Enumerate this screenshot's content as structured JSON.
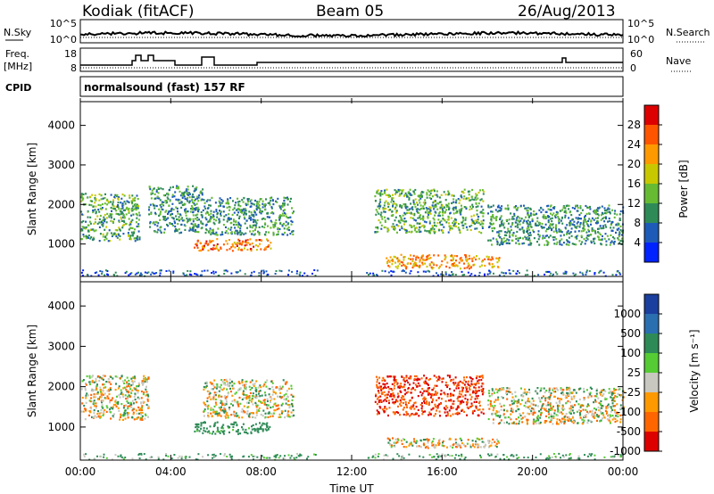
{
  "header": {
    "station": "Kodiak (fitACF)",
    "beam": "Beam 05",
    "date": "26/Aug/2013",
    "cpid_label": "CPID",
    "cpid_text": "normalsound (fast) 157 RF"
  },
  "strip_noise": {
    "left_label": "N.Sky",
    "right_label": "N.Search",
    "left_ticks": [
      "10^5",
      "10^0"
    ],
    "right_ticks": [
      "10^5",
      "10^0"
    ]
  },
  "strip_freq": {
    "left_label_1": "Freq.",
    "left_label_2": "[MHz]",
    "right_label": "Nave",
    "left_ticks": [
      "18",
      "8"
    ],
    "right_ticks": [
      "60",
      "0"
    ]
  },
  "x_axis": {
    "label": "Time UT",
    "ticks": [
      "00:00",
      "04:00",
      "08:00",
      "12:00",
      "16:00",
      "20:00",
      "00:00"
    ]
  },
  "chart_data": [
    {
      "type": "heatmap",
      "name": "power",
      "ylabel": "Slant Range [km]",
      "y_ticks": [
        "1000",
        "2000",
        "3000",
        "4000"
      ],
      "ylim": [
        180,
        4600
      ],
      "xlim_hours": [
        0,
        24
      ],
      "colorbar": {
        "label": "Power [dB]",
        "ticks": [
          "4",
          "8",
          "12",
          "16",
          "20",
          "24",
          "28"
        ],
        "range": [
          0,
          32
        ],
        "colors": [
          "#0022ff",
          "#1e5bb8",
          "#2e8b57",
          "#66bb33",
          "#c8c800",
          "#ff9900",
          "#ff5500",
          "#dd0000"
        ]
      },
      "echo_regions": [
        {
          "t0": 0.0,
          "t1": 2.6,
          "r0": 1100,
          "r1": 2300,
          "dB": 12
        },
        {
          "t0": 3.0,
          "t1": 5.4,
          "r0": 1300,
          "r1": 2500,
          "dB": 10
        },
        {
          "t0": 5.0,
          "t1": 8.4,
          "r0": 850,
          "r1": 1150,
          "dB": 24
        },
        {
          "t0": 5.4,
          "t1": 9.4,
          "r0": 1250,
          "r1": 2200,
          "dB": 10
        },
        {
          "t0": 13.0,
          "t1": 17.8,
          "r0": 1300,
          "r1": 2400,
          "dB": 12
        },
        {
          "t0": 13.5,
          "t1": 18.5,
          "r0": 400,
          "r1": 750,
          "dB": 22
        },
        {
          "t0": 18.0,
          "t1": 24.0,
          "r0": 1000,
          "r1": 2000,
          "dB": 10
        }
      ]
    },
    {
      "type": "heatmap",
      "name": "velocity",
      "ylabel": "Slant Range [km]",
      "y_ticks": [
        "1000",
        "2000",
        "3000",
        "4000"
      ],
      "ylim": [
        180,
        4600
      ],
      "xlim_hours": [
        0,
        24
      ],
      "colorbar": {
        "label": "Velocity [m s⁻¹]",
        "ticks": [
          "1000",
          "500",
          "100",
          "25",
          "-25",
          "-100",
          "-500",
          "-1000"
        ],
        "colors": [
          "#1a3f9e",
          "#2a6fb0",
          "#2e8b57",
          "#55cc33",
          "#c8c8c0",
          "#ff9900",
          "#ff6600",
          "#dd0000"
        ]
      },
      "echo_regions": [
        {
          "t0": 0.0,
          "t1": 3.0,
          "r0": 1200,
          "r1": 2300,
          "v": 0
        },
        {
          "t0": 5.0,
          "t1": 8.4,
          "r0": 850,
          "r1": 1150,
          "v": 150
        },
        {
          "t0": 5.4,
          "t1": 9.4,
          "r0": 1250,
          "r1": 2200,
          "v": 0
        },
        {
          "t0": 13.0,
          "t1": 17.8,
          "r0": 1300,
          "r1": 2300,
          "v": -300
        },
        {
          "t0": 13.5,
          "t1": 18.5,
          "r0": 500,
          "r1": 750,
          "v": -20
        },
        {
          "t0": 18.0,
          "t1": 24.0,
          "r0": 1100,
          "r1": 2000,
          "v": 0
        }
      ]
    }
  ]
}
